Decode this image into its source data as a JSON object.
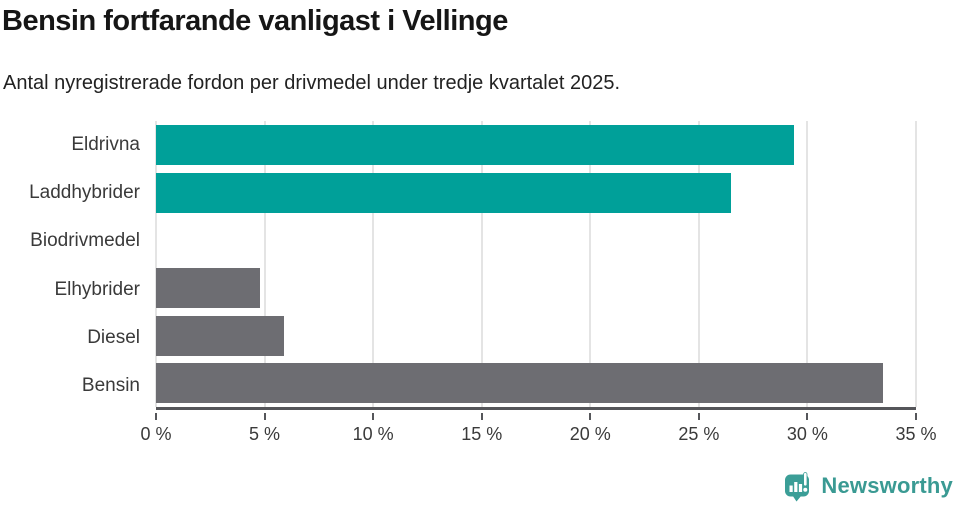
{
  "chart_data": {
    "type": "bar",
    "orientation": "horizontal",
    "title": "Bensin fortfarande vanligast i Vellinge",
    "subtitle": "Antal nyregistrerade fordon per drivmedel under tredje kvartalet 2025.",
    "categories": [
      "Eldrivna",
      "Laddhybrider",
      "Biodrivmedel",
      "Elhybrider",
      "Diesel",
      "Bensin"
    ],
    "values": [
      29.4,
      26.5,
      0,
      4.8,
      5.9,
      33.5
    ],
    "value_unit": "%",
    "bar_colors": [
      "#00a099",
      "#00a099",
      "#00a099",
      "#6d6d72",
      "#6d6d72",
      "#6d6d72"
    ],
    "xlim": [
      0,
      35
    ],
    "xticks": [
      0,
      5,
      10,
      15,
      20,
      25,
      30,
      35
    ],
    "xtick_label_suffix": " %",
    "grid": "vertical",
    "legend": "none"
  },
  "footer": {
    "brand_label": "Newsworthy",
    "brand_color": "#3a9a93",
    "icon": "newsworthy-chart-bubble-icon",
    "icon_color": "#3b9e97"
  },
  "colors": {
    "bar_teal": "#00a099",
    "bar_gray": "#6d6d72",
    "axis_line": "#55565a",
    "gridline": "#e4e4e4",
    "title_text": "#161616",
    "label_text": "#3a3a3a"
  }
}
